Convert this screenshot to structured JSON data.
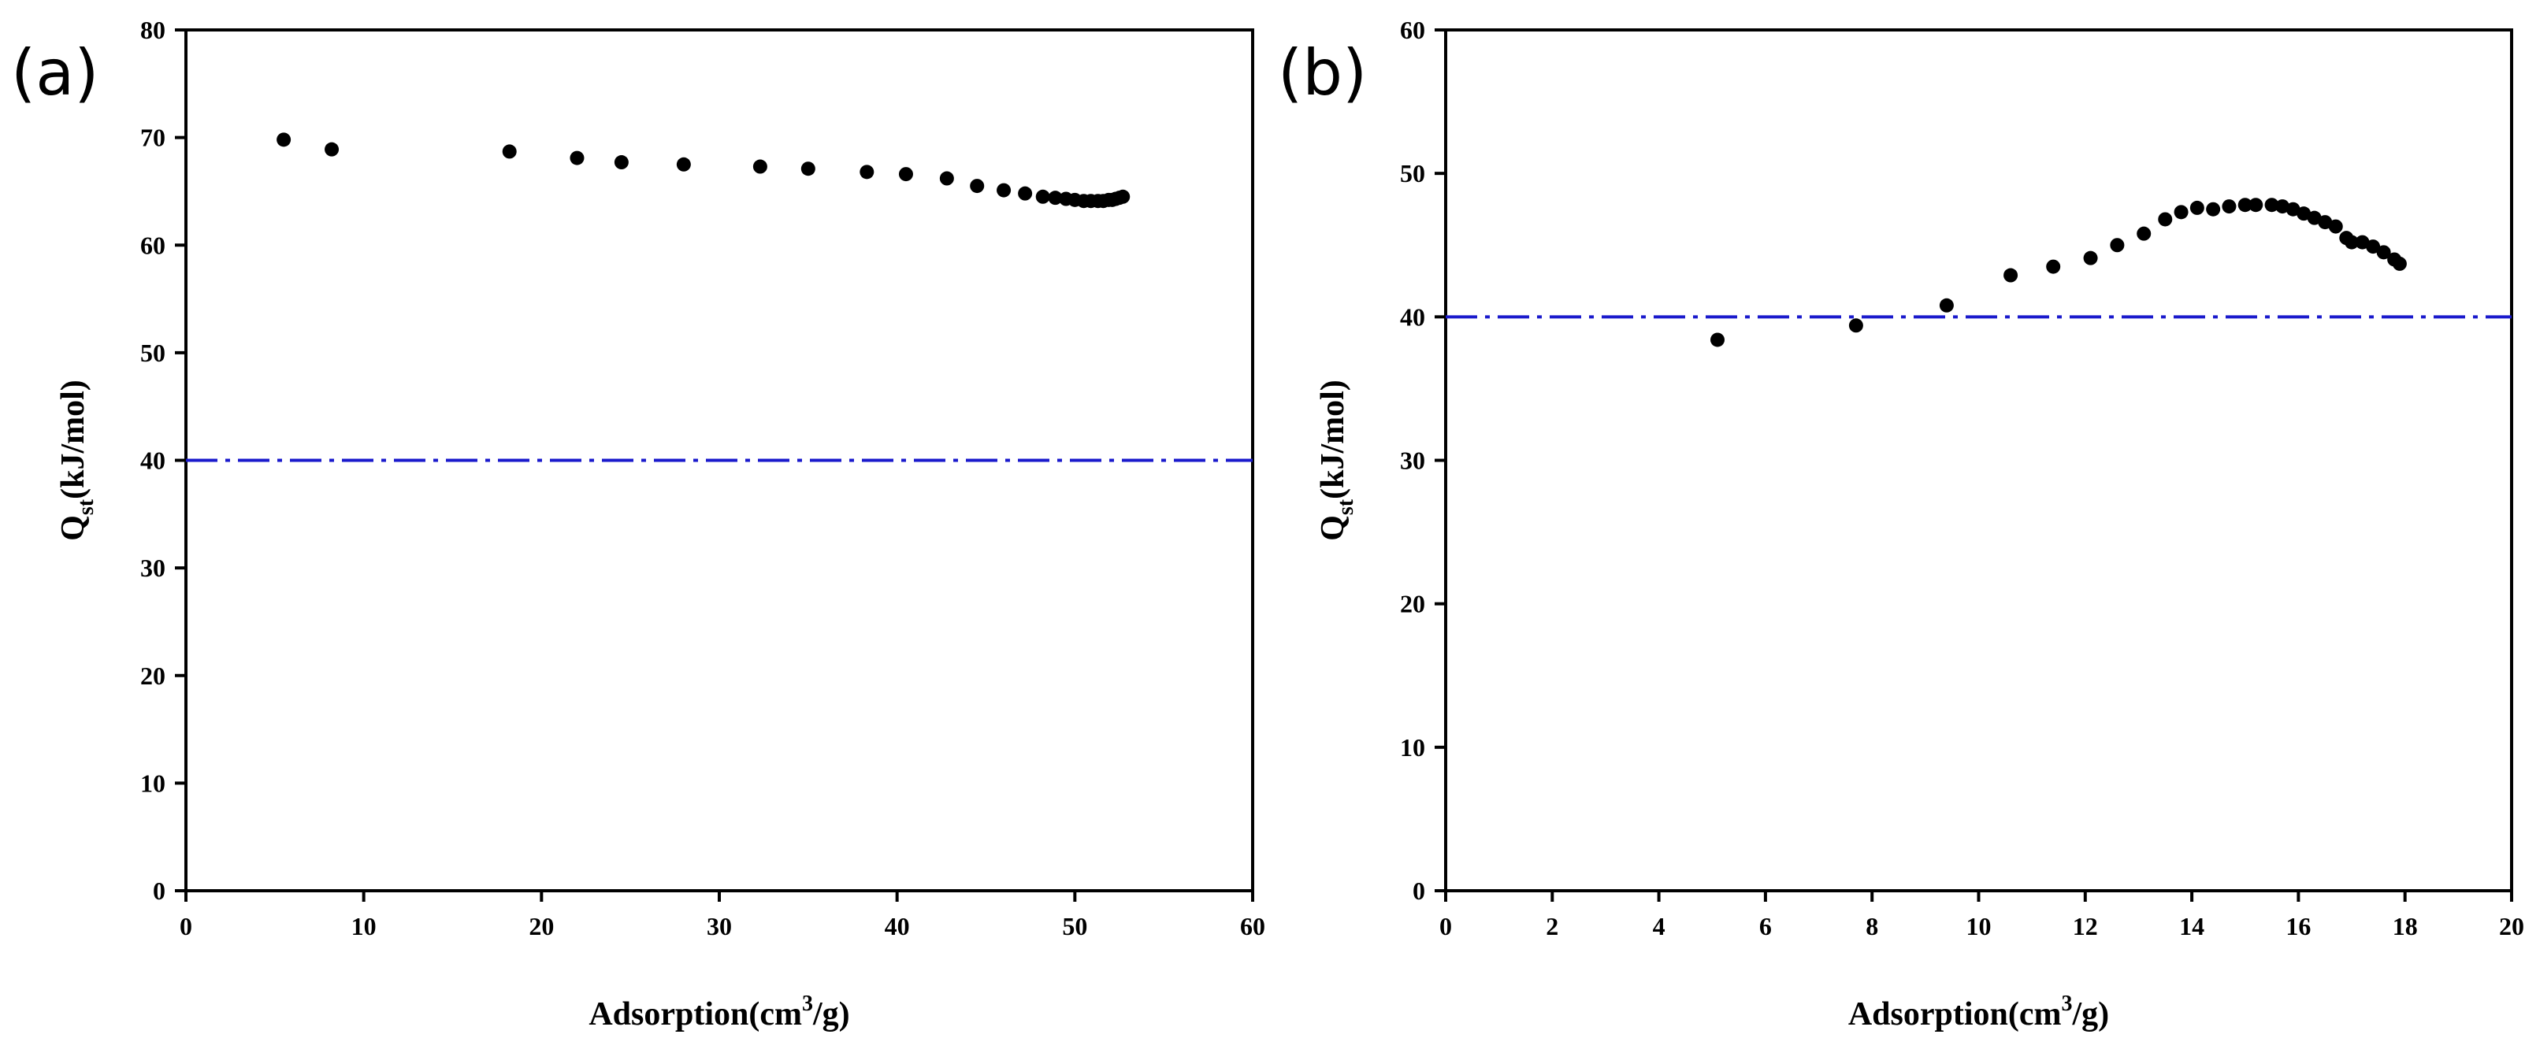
{
  "colors": {
    "reference_line": "#1a1acc",
    "marker": "#000000"
  },
  "chart_data": [
    {
      "type": "scatter",
      "panel_label": "(a)",
      "xlabel_main": "Adsorption(cm",
      "xlabel_sup": "3",
      "xlabel_tail": "/g)",
      "ylabel_main": "Q",
      "ylabel_sub": "st",
      "ylabel_tail": "(kJ/mol)",
      "xlim": [
        0,
        60
      ],
      "ylim": [
        0,
        80
      ],
      "xticks": [
        0,
        10,
        20,
        30,
        40,
        50,
        60
      ],
      "yticks": [
        0,
        10,
        20,
        30,
        40,
        50,
        60,
        70,
        80
      ],
      "reference_line_y": 40,
      "series": [
        {
          "name": "Qst",
          "x": [
            5.5,
            8.2,
            18.2,
            22.0,
            24.5,
            28.0,
            32.3,
            35.0,
            38.3,
            40.5,
            42.8,
            44.5,
            46.0,
            47.2,
            48.2,
            48.9,
            49.5,
            50.0,
            50.5,
            50.9,
            51.3,
            51.6,
            51.9,
            52.1,
            52.3,
            52.5,
            52.7
          ],
          "y": [
            69.8,
            68.9,
            68.7,
            68.1,
            67.7,
            67.5,
            67.3,
            67.1,
            66.8,
            66.6,
            66.2,
            65.5,
            65.1,
            64.8,
            64.5,
            64.4,
            64.3,
            64.2,
            64.1,
            64.1,
            64.1,
            64.1,
            64.2,
            64.2,
            64.3,
            64.4,
            64.5
          ]
        }
      ]
    },
    {
      "type": "scatter",
      "panel_label": "(b)",
      "xlabel_main": "Adsorption(cm",
      "xlabel_sup": "3",
      "xlabel_tail": "/g)",
      "ylabel_main": "Q",
      "ylabel_sub": "st",
      "ylabel_tail": "(kJ/mol)",
      "xlim": [
        0,
        20
      ],
      "ylim": [
        0,
        60
      ],
      "xticks": [
        0,
        2,
        4,
        6,
        8,
        10,
        12,
        14,
        16,
        18,
        20
      ],
      "yticks": [
        0,
        10,
        20,
        30,
        40,
        50,
        60
      ],
      "reference_line_y": 40,
      "series": [
        {
          "name": "Qst",
          "x": [
            5.1,
            7.7,
            9.4,
            10.6,
            11.4,
            12.1,
            12.6,
            13.1,
            13.5,
            13.8,
            14.1,
            14.4,
            14.7,
            15.0,
            15.2,
            15.5,
            15.7,
            15.9,
            16.1,
            16.3,
            16.5,
            16.7,
            16.9,
            17.0,
            17.2,
            17.4,
            17.6,
            17.8,
            17.9
          ],
          "y": [
            38.4,
            39.4,
            40.8,
            42.9,
            43.5,
            44.1,
            45.0,
            45.8,
            46.8,
            47.3,
            47.6,
            47.5,
            47.7,
            47.8,
            47.8,
            47.8,
            47.7,
            47.5,
            47.2,
            46.9,
            46.6,
            46.3,
            45.5,
            45.2,
            45.2,
            44.9,
            44.5,
            44.0,
            43.7
          ]
        }
      ]
    }
  ]
}
